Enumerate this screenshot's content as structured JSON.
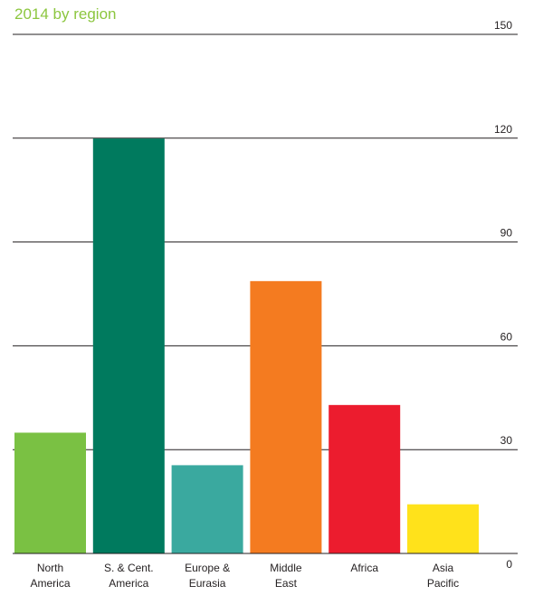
{
  "title": "2014 by region",
  "chart_data": {
    "type": "bar",
    "title": "2014 by region",
    "xlabel": "",
    "ylabel": "",
    "ylim": [
      0,
      150
    ],
    "yticks": [
      0,
      30,
      60,
      90,
      120,
      150
    ],
    "y_axis_position": "right",
    "grid": true,
    "legend": "none",
    "categories": [
      [
        "North",
        "America"
      ],
      [
        "S. & Cent.",
        "America"
      ],
      [
        "Europe &",
        "Eurasia"
      ],
      [
        "Middle",
        "East"
      ],
      [
        "Africa"
      ],
      [
        "Asia",
        "Pacific"
      ]
    ],
    "values": [
      34.9,
      119.9,
      25.5,
      78.7,
      42.9,
      14.2
    ],
    "colors": [
      "#7ac143",
      "#007a5e",
      "#3aa99f",
      "#f47b20",
      "#ec1c2e",
      "#ffe21b"
    ],
    "text_color": "#231f20",
    "grid_color": "#231f20"
  }
}
